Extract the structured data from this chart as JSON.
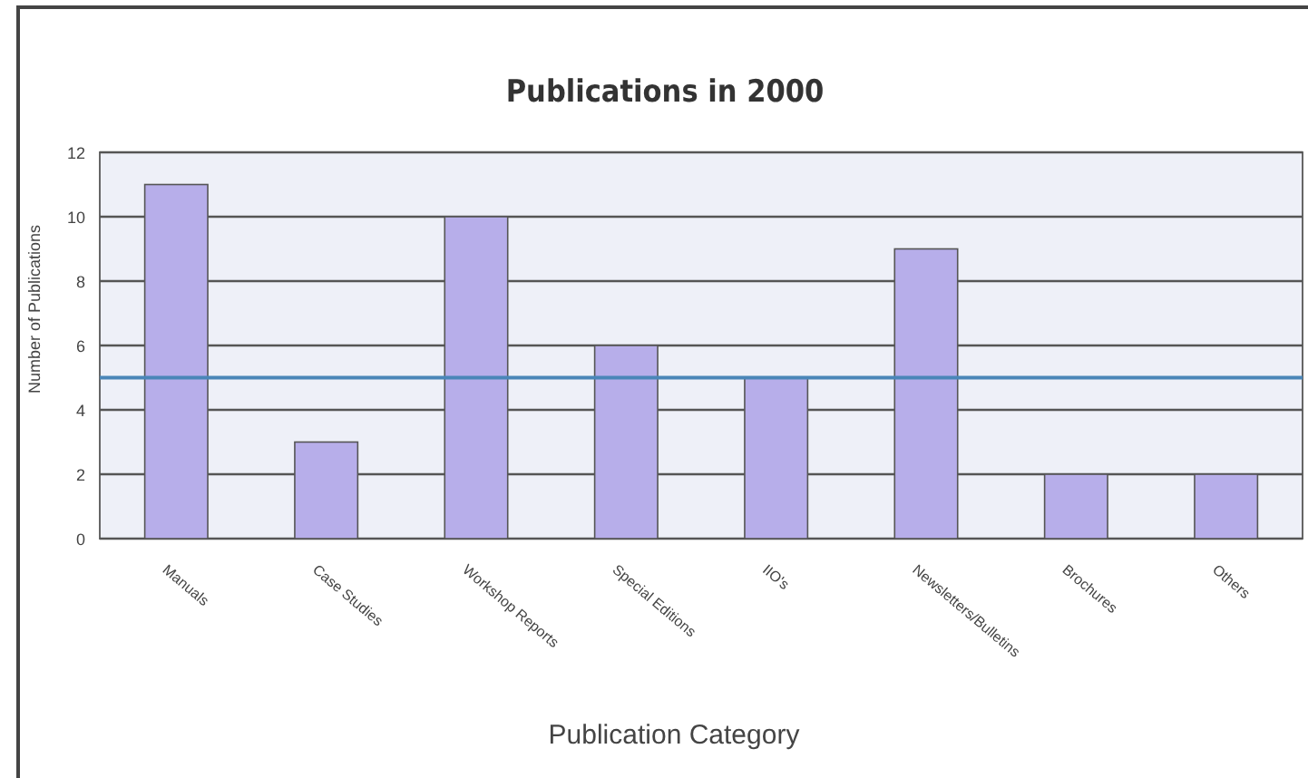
{
  "chart_data": {
    "type": "bar",
    "title": "Publications in 2000",
    "xlabel": "Publication Category",
    "ylabel": "Number of Publications",
    "categories": [
      "Manuals",
      "Case Studies",
      "Workshop Reports",
      "Special Editions",
      "IIO's",
      "Newsletters/Bulletins",
      "Brochures",
      "Others"
    ],
    "values": [
      11,
      3,
      10,
      6,
      5,
      9,
      2,
      2
    ],
    "color": "#b7aeea",
    "ylim": [
      0,
      12
    ],
    "yticks": [
      0,
      2,
      4,
      6,
      8,
      10,
      12
    ],
    "grid": "y",
    "ref_lines": [
      {
        "axis": "y",
        "value": 5,
        "color": "#4a86b8"
      }
    ]
  }
}
